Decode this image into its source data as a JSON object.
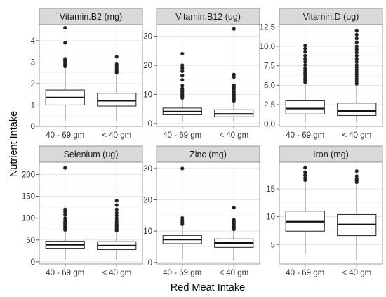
{
  "chart_data": {
    "type": "boxplot",
    "xlabel": "Red Meat Intake",
    "ylabel": "Nutrient Intake",
    "categories": [
      "40 - 69 gm",
      "< 40 gm"
    ],
    "grid": true,
    "legend": "none",
    "colors": {
      "strip_fill": "#d9d9d9",
      "strip_border": "#7f7f7f",
      "panel_border": "#7f7f7f",
      "grid_major": "#e3e3e3",
      "grid_minor": "#f2f2f2",
      "box_fill": "#ffffff",
      "box_line": "#333333",
      "outlier": "#222222"
    },
    "panels": [
      {
        "title": "Vitamin.B2 (mg)",
        "ylim": [
          0,
          4.75
        ],
        "yticks": [
          0,
          1,
          2,
          3,
          4
        ],
        "yticklabels": [
          "0",
          "1",
          "2",
          "3",
          "4"
        ],
        "boxes": [
          {
            "category": "40 - 69 gm",
            "whisker_low": 0.25,
            "q1": 1.0,
            "median": 1.35,
            "q3": 1.7,
            "whisker_high": 2.75,
            "outliers": [
              2.8,
              2.85,
              2.9,
              2.95,
              3.0,
              3.05,
              3.1,
              3.15,
              3.9,
              4.6
            ]
          },
          {
            "category": "< 40 gm",
            "whisker_low": 0.25,
            "q1": 0.95,
            "median": 1.2,
            "q3": 1.55,
            "whisker_high": 2.45,
            "outliers": [
              2.5,
              2.55,
              2.6,
              2.7,
              2.8,
              2.9,
              3.25
            ]
          }
        ]
      },
      {
        "title": "Vitamin.B12 (ug)",
        "ylim": [
          -1,
          34
        ],
        "yticks": [
          0,
          10,
          20,
          30
        ],
        "yticklabels": [
          "0",
          "10",
          "20",
          "30"
        ],
        "boxes": [
          {
            "category": "40 - 69 gm",
            "whisker_low": 0.5,
            "q1": 3.0,
            "median": 4.1,
            "q3": 5.3,
            "whisker_high": 8.5,
            "outliers": [
              8.8,
              9.2,
              9.6,
              10.0,
              10.5,
              11.0,
              11.5,
              12.0,
              13.0,
              15.0,
              16.5,
              18.0,
              19.0,
              20.0,
              24.0
            ]
          },
          {
            "category": "< 40 gm",
            "whisker_low": 0.5,
            "q1": 2.3,
            "median": 3.3,
            "q3": 4.7,
            "whisker_high": 7.5,
            "outliers": [
              7.8,
              8.2,
              8.6,
              9.0,
              9.5,
              10.0,
              10.5,
              11.0,
              11.8,
              12.5,
              13.2,
              16.0,
              16.8,
              32.5
            ]
          }
        ]
      },
      {
        "title": "Vitamin.D (ug)",
        "ylim": [
          -0.3,
          12.8
        ],
        "yticks": [
          0,
          2.5,
          5,
          7.5,
          10,
          12.5
        ],
        "yticklabels": [
          "0.0",
          "2.5",
          "5.0",
          "7.5",
          "10.0",
          "12.5"
        ],
        "boxes": [
          {
            "category": "40 - 69 gm",
            "whisker_low": 0.2,
            "q1": 1.3,
            "median": 2.0,
            "q3": 3.0,
            "whisker_high": 5.2,
            "outliers": [
              5.4,
              5.7,
              6.0,
              6.3,
              6.6,
              6.9,
              7.2,
              7.6,
              8.0,
              8.4,
              8.8,
              9.3,
              9.7,
              10.1
            ]
          },
          {
            "category": "< 40 gm",
            "whisker_low": 0.2,
            "q1": 1.1,
            "median": 1.7,
            "q3": 2.7,
            "whisker_high": 5.0,
            "outliers": [
              5.2,
              5.5,
              5.8,
              6.1,
              6.4,
              6.7,
              7.0,
              7.3,
              7.6,
              8.0,
              8.4,
              8.8,
              9.2,
              9.6,
              10.0,
              10.5,
              11.0,
              11.5,
              12.0
            ]
          }
        ]
      },
      {
        "title": "Selenium (ug)",
        "ylim": [
          -5,
          228
        ],
        "yticks": [
          0,
          50,
          100,
          150,
          200
        ],
        "yticklabels": [
          "0",
          "50",
          "100",
          "150",
          "200"
        ],
        "boxes": [
          {
            "category": "40 - 69 gm",
            "whisker_low": 3,
            "q1": 31,
            "median": 39,
            "q3": 47,
            "whisker_high": 70,
            "outliers": [
              73,
              76,
              79,
              82,
              85,
              88,
              91,
              95,
              100,
              108,
              115,
              120,
              215
            ]
          },
          {
            "category": "< 40 gm",
            "whisker_low": 3,
            "q1": 28,
            "median": 37,
            "q3": 46,
            "whisker_high": 68,
            "outliers": [
              71,
              74,
              77,
              80,
              83,
              86,
              90,
              95,
              100,
              106,
              112,
              120,
              130,
              140
            ]
          }
        ]
      },
      {
        "title": "Zinc (mg)",
        "ylim": [
          -0.5,
          32
        ],
        "yticks": [
          0,
          10,
          20,
          30
        ],
        "yticklabels": [
          "0",
          "10",
          "20",
          "30"
        ],
        "boxes": [
          {
            "category": "40 - 69 gm",
            "whisker_low": 1.0,
            "q1": 6.0,
            "median": 7.3,
            "q3": 8.6,
            "whisker_high": 11.8,
            "outliers": [
              12.2,
              12.8,
              13.4,
              14.2,
              30.0
            ]
          },
          {
            "category": "< 40 gm",
            "whisker_low": 0.5,
            "q1": 4.8,
            "median": 6.2,
            "q3": 7.5,
            "whisker_high": 10.2,
            "outliers": [
              10.6,
              11.0,
              11.5,
              12.0,
              12.5,
              13.0,
              13.6,
              17.5
            ]
          }
        ]
      },
      {
        "title": "Iron (mg)",
        "ylim": [
          1.5,
          19.8
        ],
        "yticks": [
          5,
          10,
          15
        ],
        "yticklabels": [
          "5",
          "10",
          "15"
        ],
        "boxes": [
          {
            "category": "40 - 69 gm",
            "whisker_low": 3.3,
            "q1": 7.4,
            "median": 9.1,
            "q3": 11.0,
            "whisker_high": 16.2,
            "outliers": [
              16.6,
              17.0,
              17.5,
              18.0,
              18.8
            ]
          },
          {
            "category": "< 40 gm",
            "whisker_low": 2.3,
            "q1": 6.6,
            "median": 8.6,
            "q3": 10.4,
            "whisker_high": 15.8,
            "outliers": [
              16.2,
              16.5,
              16.8,
              17.3,
              18.2
            ]
          }
        ]
      }
    ]
  }
}
